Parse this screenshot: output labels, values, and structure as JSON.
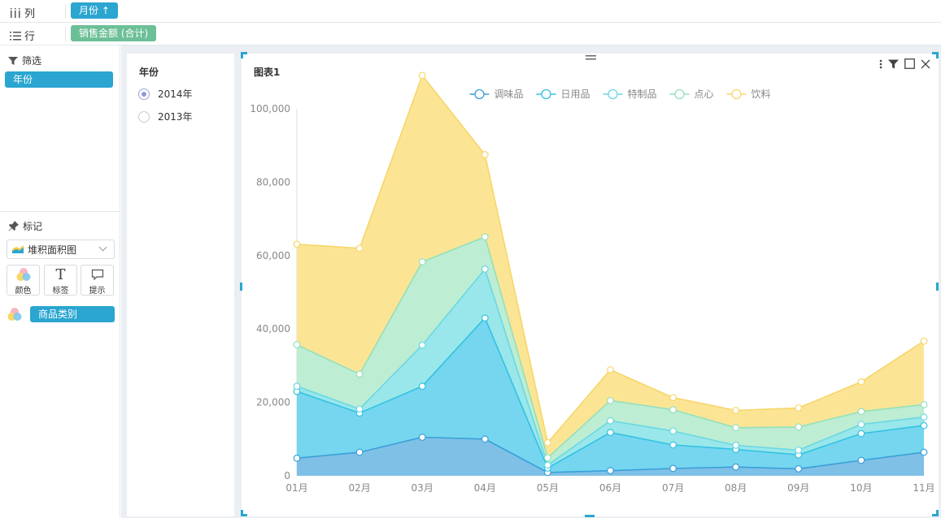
{
  "shelves": {
    "columns": {
      "label": "列",
      "pill": "月份 ↑"
    },
    "rows": {
      "label": "行",
      "pill": "销售金额 (合计)"
    }
  },
  "filter": {
    "title": "筛选",
    "items": [
      "年份"
    ]
  },
  "marks": {
    "title": "标记",
    "type": "堆积面积图",
    "buttons": {
      "color": "颜色",
      "label": "标签",
      "tooltip": "提示"
    },
    "color_field": "商品类别"
  },
  "year_filter": {
    "title": "年份",
    "options": [
      {
        "label": "2014年",
        "selected": true
      },
      {
        "label": "2013年",
        "selected": false
      }
    ]
  },
  "chart_data": {
    "type": "area",
    "stacked": true,
    "title": "图表1",
    "categories": [
      "01月",
      "02月",
      "03月",
      "04月",
      "05月",
      "06月",
      "07月",
      "08月",
      "09月",
      "10月",
      "11月"
    ],
    "ylim": [
      0,
      100000
    ],
    "yticks": [
      0,
      20000,
      40000,
      60000,
      80000,
      100000
    ],
    "ytick_labels": [
      "0",
      "20,000",
      "40,000",
      "60,000",
      "80,000",
      "100,000"
    ],
    "legend_position": "top",
    "series": [
      {
        "name": "调味品",
        "color": "#3a9fd8",
        "fill": "#78bde6",
        "values": [
          4800,
          6400,
          10500,
          10000,
          900,
          1400,
          2000,
          2400,
          1900,
          4200,
          6400
        ]
      },
      {
        "name": "日用品",
        "color": "#33c1e3",
        "fill": "#6fd4ee",
        "values": [
          18200,
          10700,
          13900,
          33000,
          1200,
          10400,
          6400,
          4800,
          3800,
          7300,
          7300
        ]
      },
      {
        "name": "特制品",
        "color": "#6ad8e3",
        "fill": "#93e6e9",
        "values": [
          1400,
          1100,
          11200,
          13300,
          800,
          3200,
          3800,
          1100,
          1300,
          2500,
          2300
        ]
      },
      {
        "name": "点心",
        "color": "#94e0bc",
        "fill": "#b9ecd1",
        "values": [
          11300,
          9500,
          22700,
          8800,
          2000,
          5500,
          5800,
          4800,
          6300,
          3500,
          3400
        ]
      },
      {
        "name": "饮料",
        "color": "#f7d66a",
        "fill": "#fbe48f",
        "values": [
          27400,
          34300,
          50800,
          22400,
          4100,
          8400,
          3300,
          4700,
          5200,
          8100,
          17300
        ]
      }
    ]
  }
}
